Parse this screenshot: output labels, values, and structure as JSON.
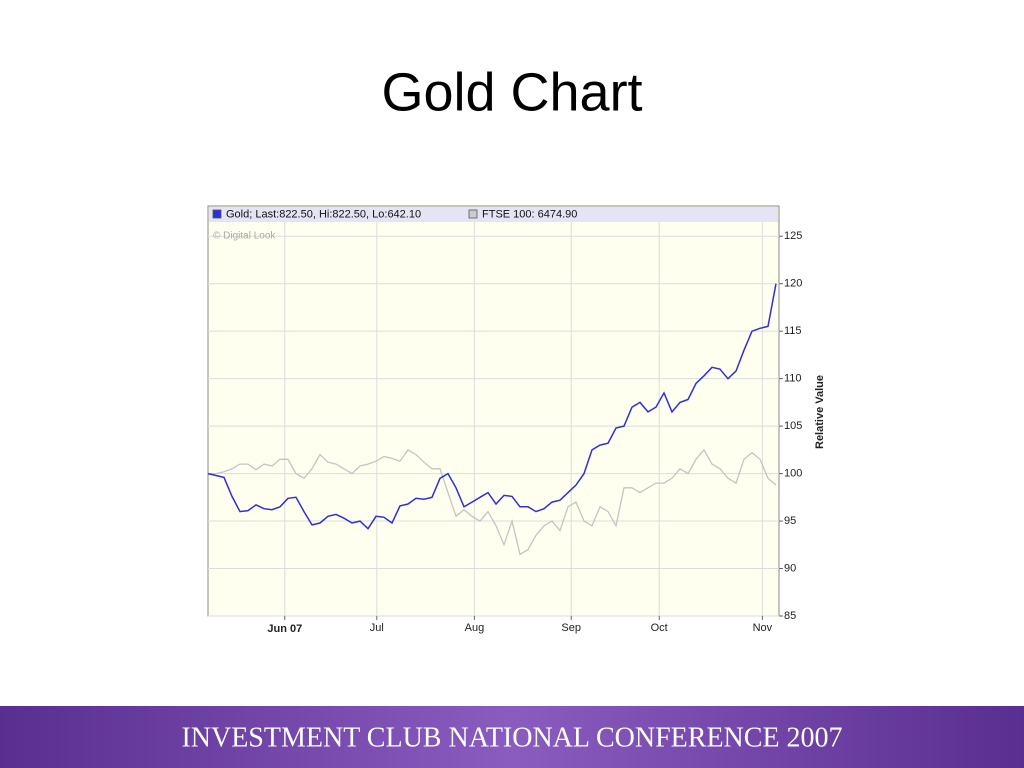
{
  "title": "Gold Chart",
  "footer": "INVESTMENT CLUB NATIONAL CONFERENCE 2007",
  "chart_data": {
    "type": "line",
    "watermark": "© Digital Look",
    "y_label": "Relative Value",
    "x": [
      0,
      1,
      2,
      3,
      4,
      5,
      6,
      7,
      8,
      9,
      10,
      11,
      12,
      13,
      14,
      15,
      16,
      17,
      18,
      19,
      20,
      21,
      22,
      23,
      24,
      25,
      26,
      27,
      28,
      29,
      30,
      31,
      32,
      33,
      34,
      35,
      36,
      37,
      38,
      39,
      40,
      41,
      42,
      43,
      44,
      45,
      46,
      47,
      48,
      49,
      50,
      51,
      52,
      53,
      54,
      55,
      56,
      57,
      58,
      59,
      60,
      61,
      62,
      63,
      64,
      65,
      66,
      67,
      68,
      69,
      70,
      71
    ],
    "series": [
      {
        "name": "Gold; Last:822.50, Hi:822.50, Lo:642.10",
        "color": "#2f2fd6",
        "values": [
          100,
          99.8,
          99.6,
          97.6,
          96,
          96.1,
          96.7,
          96.3,
          96.2,
          96.5,
          97.4,
          97.5,
          96,
          94.6,
          94.8,
          95.5,
          95.7,
          95.3,
          94.8,
          95,
          94.2,
          95.5,
          95.4,
          94.8,
          96.6,
          96.8,
          97.4,
          97.3,
          97.5,
          99.5,
          100,
          98.5,
          96.5,
          97,
          97.5,
          98,
          96.8,
          97.7,
          97.6,
          96.5,
          96.5,
          96,
          96.3,
          97,
          97.2,
          98,
          98.8,
          100,
          102.5,
          103,
          103.2,
          104.8,
          105,
          107,
          107.5,
          106.5,
          107,
          108.5,
          106.5,
          107.5,
          107.8,
          109.5,
          110.3,
          111.2,
          111,
          110,
          110.8,
          113,
          115,
          115.3,
          115.5,
          120
        ]
      },
      {
        "name": "FTSE 100: 6474.90",
        "color": "#c4c4c4",
        "values": [
          100,
          100,
          100.2,
          100.5,
          101,
          101,
          100.4,
          101,
          100.8,
          101.5,
          101.5,
          100,
          99.5,
          100.5,
          102,
          101.2,
          101,
          100.5,
          100,
          100.8,
          101,
          101.3,
          101.8,
          101.6,
          101.3,
          102.5,
          102,
          101.2,
          100.5,
          100.5,
          98,
          95.5,
          96.2,
          95.5,
          95,
          96,
          94.5,
          92.5,
          95,
          91.5,
          92,
          93.5,
          94.5,
          95,
          94,
          96.5,
          97,
          95,
          94.5,
          96.5,
          96,
          94.5,
          98.5,
          98.5,
          98,
          98.5,
          99,
          99,
          99.5,
          100.5,
          100,
          101.5,
          102.5,
          101,
          100.5,
          99.5,
          99,
          101.5,
          102.2,
          101.5,
          99.5,
          98.8
        ]
      }
    ],
    "xlim": [
      0,
      71
    ],
    "xticks": [
      {
        "value": 9.6,
        "label": "Jun 07"
      },
      {
        "value": 21.1,
        "label": "Jul"
      },
      {
        "value": 33.3,
        "label": "Aug"
      },
      {
        "value": 45.4,
        "label": "Sep"
      },
      {
        "value": 56.4,
        "label": "Oct"
      },
      {
        "value": 69.3,
        "label": "Nov"
      }
    ],
    "ylim": [
      85,
      126.5
    ],
    "yticks": [
      85,
      90,
      95,
      100,
      105,
      110,
      115,
      120,
      125
    ],
    "grid": true
  }
}
